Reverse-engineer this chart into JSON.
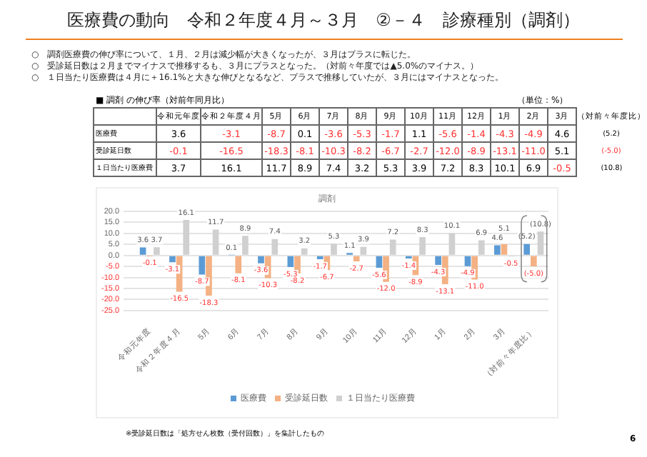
{
  "chart_data": {
    "type": "bar",
    "title": "医療費の動向　令和２年度４月～３月　②－４　診療種別（調剤）",
    "subtitle": "調剤",
    "annotations": [
      "○　調剤医療費の伸び率について、１月、２月は減少幅が大きくなったが、３月はプラスに転じた。",
      "○　受診延日数は２月までマイナスで推移するも、３月にプラスとなった。（対前々年度では▲5.0%のマイナス。）",
      "○　１日当たり医療費は４月に＋16.1%と大きな伸びとなるなど、プラスで推移していたが、３月にはマイナスとなった。",
      "■ 調剤 の伸び率（対前年同月比）",
      "（単位：%）",
      "※受診延日数は「処方せん枚数（受付回数）」を集計したもの",
      "6"
    ],
    "categories": [
      "令和元年度",
      "令和２年度４月",
      "5月",
      "6月",
      "7月",
      "8月",
      "9月",
      "10月",
      "11月",
      "12月",
      "1月",
      "2月",
      "3月",
      "（対前々年度比）"
    ],
    "series": [
      {
        "name": "医療費",
        "color": "#5b9bd5",
        "values": [
          3.6,
          -3.1,
          -8.7,
          0.1,
          -3.6,
          -5.3,
          -1.7,
          1.1,
          -5.6,
          -1.4,
          -4.3,
          -4.9,
          4.6,
          5.2
        ],
        "value_labels": [
          "3.6",
          "-3.1",
          "-8.7",
          "0.1",
          "-3.6",
          "-5.3",
          "-1.7",
          "1.1",
          "-5.6",
          "-1.4",
          "-4.3",
          "-4.9",
          "4.6",
          "(5.2)"
        ]
      },
      {
        "name": "受診延日数",
        "color": "#f4b183",
        "values": [
          -0.1,
          -16.5,
          -18.3,
          -8.1,
          -10.3,
          -8.2,
          -6.7,
          -2.7,
          -12.0,
          -8.9,
          -13.1,
          -11.0,
          5.1,
          -5.0
        ],
        "value_labels": [
          "-0.1",
          "-16.5",
          "-18.3",
          "-8.1",
          "-10.3",
          "-8.2",
          "-6.7",
          "-2.7",
          "-12.0",
          "-8.9",
          "-13.1",
          "-11.0",
          "5.1",
          "(-5.0)"
        ]
      },
      {
        "name": "１日当たり医療費",
        "color": "#d0d0d0",
        "values": [
          3.7,
          16.1,
          11.7,
          8.9,
          7.4,
          3.2,
          5.3,
          3.9,
          7.2,
          8.3,
          10.1,
          6.9,
          -0.5,
          10.8
        ],
        "value_labels": [
          "3.7",
          "16.1",
          "11.7",
          "8.9",
          "7.4",
          "3.2",
          "5.3",
          "3.9",
          "7.2",
          "8.3",
          "10.1",
          "6.9",
          "-0.5",
          "(10.8)"
        ]
      }
    ],
    "ylim": [
      -25,
      20
    ],
    "yticks": [
      {
        "value": -25,
        "label": "-25.0"
      },
      {
        "value": -20,
        "label": "-20.0"
      },
      {
        "value": -15,
        "label": "-15.0"
      },
      {
        "value": -10,
        "label": "-10.0"
      },
      {
        "value": -5,
        "label": "-5.0"
      },
      {
        "value": 0,
        "label": "0.0"
      },
      {
        "value": 5,
        "label": "5.0"
      },
      {
        "value": 10,
        "label": "10.0"
      },
      {
        "value": 15,
        "label": "15.0"
      },
      {
        "value": 20,
        "label": "20.0"
      }
    ],
    "grid": "y",
    "legend": "bottom"
  }
}
